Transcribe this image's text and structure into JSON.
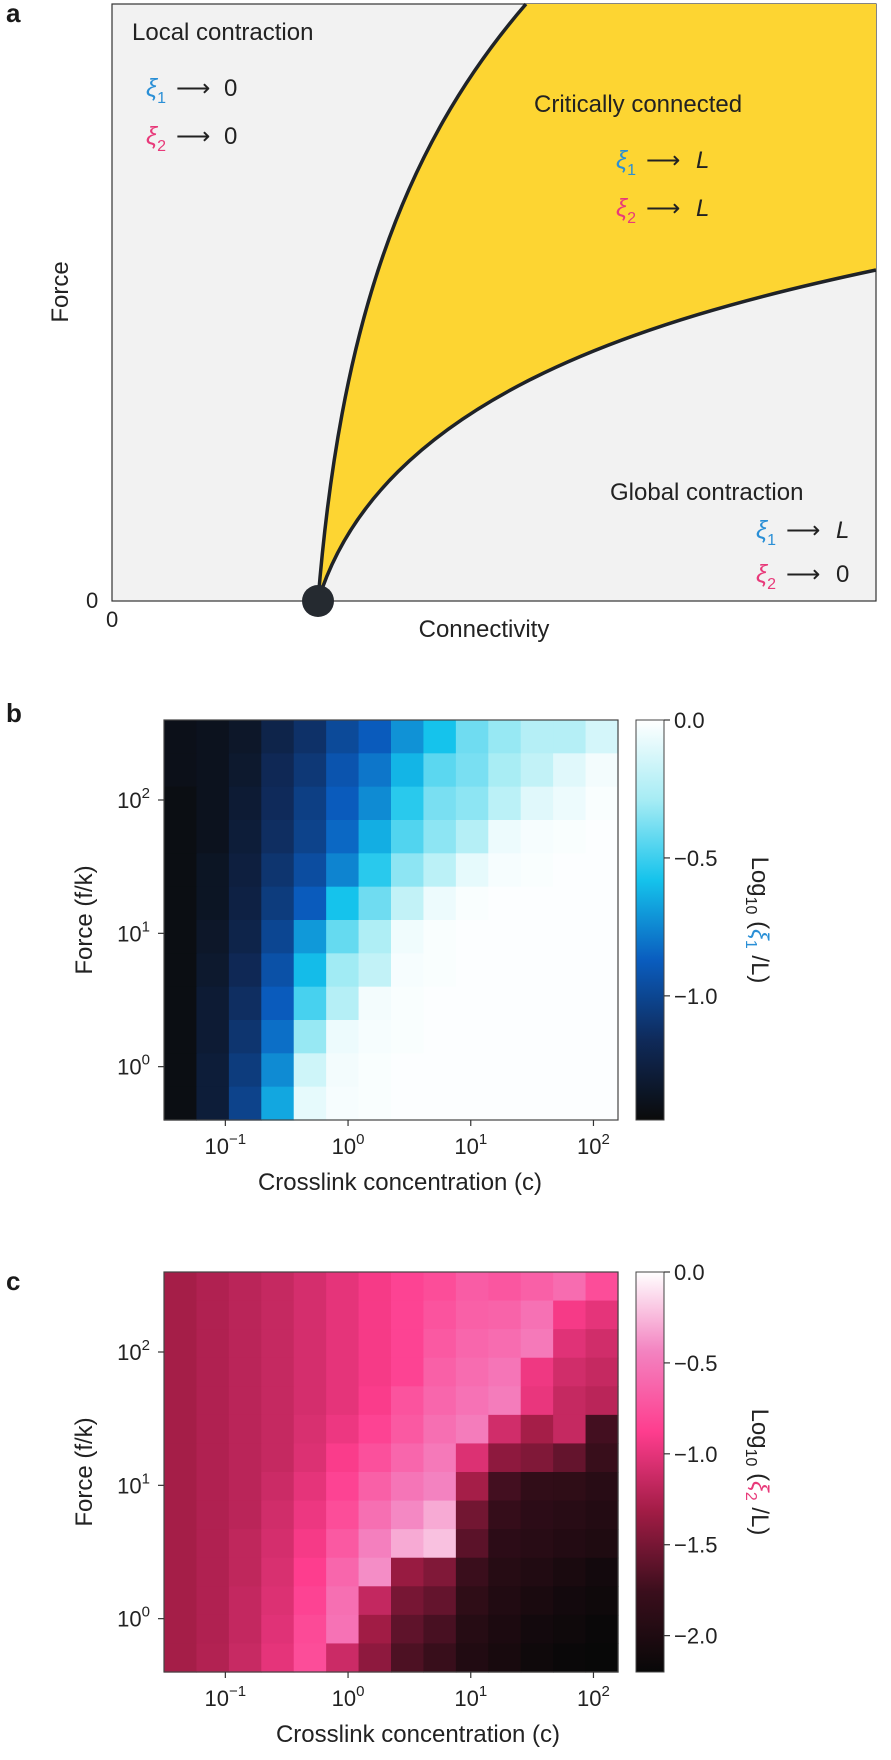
{
  "panels": {
    "a": "a",
    "b": "b",
    "c": "c"
  },
  "chart_data": [
    {
      "type": "diagram",
      "panel": "a",
      "xlabel": "Connectivity",
      "ylabel": "Force",
      "x_origin_label": "0",
      "y_origin_label": "0",
      "regions": [
        {
          "name": "Local contraction",
          "lines": [
            {
              "sym": "ξ",
              "sub": "1",
              "arrow": "⟶",
              "val": "0"
            },
            {
              "sym": "ξ",
              "sub": "2",
              "arrow": "⟶",
              "val": "0"
            }
          ]
        },
        {
          "name": "Critically connected",
          "lines": [
            {
              "sym": "ξ",
              "sub": "1",
              "arrow": "⟶",
              "val": "L"
            },
            {
              "sym": "ξ",
              "sub": "2",
              "arrow": "⟶",
              "val": "L"
            }
          ]
        },
        {
          "name": "Global contraction",
          "lines": [
            {
              "sym": "ξ",
              "sub": "1",
              "arrow": "⟶",
              "val": "L"
            },
            {
              "sym": "ξ",
              "sub": "2",
              "arrow": "⟶",
              "val": "0"
            }
          ]
        }
      ],
      "colors": {
        "background": "#f2f2f2",
        "critical": "#fdd532",
        "boundary": "#1f2328",
        "xi1": "#2a8fd6",
        "xi2": "#e83a7a"
      }
    },
    {
      "type": "heatmap",
      "panel": "b",
      "xlabel": "Crosslink concentration (c)",
      "ylabel": "Force (f/k)",
      "colorbar_label": {
        "pre": "Log",
        "sub": "10",
        "open": " (",
        "sym": "ξ",
        "symsub": "1",
        "post": " /L)"
      },
      "x_log_range": [
        -1.5,
        2.2
      ],
      "y_log_range": [
        -0.4,
        2.6
      ],
      "x_ticks": [
        {
          "base": "10",
          "exp": "−1",
          "value": -1
        },
        {
          "base": "10",
          "exp": "0",
          "value": 0
        },
        {
          "base": "10",
          "exp": "1",
          "value": 1
        },
        {
          "base": "10",
          "exp": "2",
          "value": 2
        }
      ],
      "y_ticks": [
        {
          "base": "10",
          "exp": "0",
          "value": 0
        },
        {
          "base": "10",
          "exp": "1",
          "value": 1
        },
        {
          "base": "10",
          "exp": "2",
          "value": 2
        }
      ],
      "colorbar_range": [
        -1.45,
        0.0
      ],
      "colorbar_ticks": [
        {
          "label": "0.0",
          "value": 0.0
        },
        {
          "label": "−0.5",
          "value": -0.5
        },
        {
          "label": "−1.0",
          "value": -1.0
        }
      ],
      "colormap": [
        "#0b0b0b",
        "#0f2a5a",
        "#0a5dbf",
        "#15c3ec",
        "#a6ecf4",
        "#ffffff"
      ],
      "values": [
        [
          -1.4,
          -1.38,
          -1.34,
          -1.22,
          -1.12,
          -0.98,
          -0.88,
          -0.72,
          -0.58,
          -0.4,
          -0.32,
          -0.24,
          -0.24,
          -0.14
        ],
        [
          -1.4,
          -1.38,
          -1.32,
          -1.18,
          -1.08,
          -0.92,
          -0.8,
          -0.62,
          -0.44,
          -0.38,
          -0.28,
          -0.2,
          -0.1,
          -0.04
        ],
        [
          -1.42,
          -1.38,
          -1.3,
          -1.16,
          -1.04,
          -0.88,
          -0.74,
          -0.54,
          -0.38,
          -0.34,
          -0.22,
          -0.1,
          -0.06,
          -0.02
        ],
        [
          -1.42,
          -1.38,
          -1.28,
          -1.14,
          -1.02,
          -0.84,
          -0.64,
          -0.46,
          -0.34,
          -0.24,
          -0.06,
          -0.03,
          -0.02,
          -0.01
        ],
        [
          -1.42,
          -1.36,
          -1.26,
          -1.1,
          -0.96,
          -0.76,
          -0.54,
          -0.34,
          -0.22,
          -0.08,
          -0.03,
          -0.02,
          -0.01,
          -0.01
        ],
        [
          -1.42,
          -1.36,
          -1.24,
          -1.06,
          -0.88,
          -0.58,
          -0.4,
          -0.2,
          -0.06,
          -0.02,
          -0.01,
          -0.01,
          -0.01,
          -0.01
        ],
        [
          -1.42,
          -1.34,
          -1.22,
          -1.0,
          -0.7,
          -0.42,
          -0.26,
          -0.05,
          -0.02,
          -0.01,
          -0.01,
          -0.01,
          -0.01,
          -0.01
        ],
        [
          -1.42,
          -1.32,
          -1.18,
          -0.94,
          -0.6,
          -0.3,
          -0.2,
          -0.03,
          -0.02,
          -0.01,
          -0.01,
          -0.01,
          -0.01,
          -0.01
        ],
        [
          -1.42,
          -1.3,
          -1.14,
          -0.88,
          -0.48,
          -0.24,
          -0.04,
          -0.02,
          -0.01,
          -0.01,
          -0.01,
          -0.01,
          -0.01,
          -0.01
        ],
        [
          -1.42,
          -1.3,
          -1.1,
          -0.82,
          -0.32,
          -0.06,
          -0.03,
          -0.02,
          -0.01,
          -0.01,
          -0.01,
          -0.01,
          -0.01,
          -0.01
        ],
        [
          -1.42,
          -1.28,
          -1.06,
          -0.74,
          -0.16,
          -0.04,
          -0.02,
          -0.01,
          -0.01,
          -0.01,
          -0.01,
          -0.01,
          -0.01,
          -0.01
        ],
        [
          -1.42,
          -1.28,
          -1.02,
          -0.66,
          -0.08,
          -0.03,
          -0.02,
          -0.01,
          -0.01,
          -0.01,
          -0.01,
          -0.01,
          -0.01,
          -0.01
        ]
      ]
    },
    {
      "type": "heatmap",
      "panel": "c",
      "xlabel": "Crosslink concentration (c)",
      "ylabel": "Force (f/k)",
      "colorbar_label": {
        "pre": "Log",
        "sub": "10",
        "open": " (",
        "sym": "ξ",
        "symsub": "2",
        "post": " /L)"
      },
      "x_log_range": [
        -1.5,
        2.2
      ],
      "y_log_range": [
        -0.4,
        2.6
      ],
      "x_ticks": [
        {
          "base": "10",
          "exp": "−1",
          "value": -1
        },
        {
          "base": "10",
          "exp": "0",
          "value": 0
        },
        {
          "base": "10",
          "exp": "1",
          "value": 1
        },
        {
          "base": "10",
          "exp": "2",
          "value": 2
        }
      ],
      "y_ticks": [
        {
          "base": "10",
          "exp": "0",
          "value": 0
        },
        {
          "base": "10",
          "exp": "1",
          "value": 1
        },
        {
          "base": "10",
          "exp": "2",
          "value": 2
        }
      ],
      "colorbar_range": [
        -2.2,
        0.0
      ],
      "colorbar_ticks": [
        {
          "label": "0.0",
          "value": 0.0
        },
        {
          "label": "−0.5",
          "value": -0.5
        },
        {
          "label": "−1.0",
          "value": -1.0
        },
        {
          "label": "−1.5",
          "value": -1.5
        },
        {
          "label": "−2.0",
          "value": -2.0
        }
      ],
      "colormap": [
        "#080808",
        "#3a0e1c",
        "#a11c45",
        "#fe3d8e",
        "#f382c0",
        "#ffffff"
      ],
      "values": [
        [
          -1.3,
          -1.25,
          -1.2,
          -1.15,
          -1.08,
          -1.0,
          -0.92,
          -0.84,
          -0.78,
          -0.68,
          -0.72,
          -0.66,
          -0.58,
          -0.78
        ],
        [
          -1.3,
          -1.25,
          -1.2,
          -1.15,
          -1.08,
          -1.0,
          -0.92,
          -0.84,
          -0.74,
          -0.66,
          -0.64,
          -0.55,
          -0.92,
          -1.0
        ],
        [
          -1.3,
          -1.25,
          -1.2,
          -1.15,
          -1.08,
          -1.0,
          -0.92,
          -0.84,
          -0.7,
          -0.62,
          -0.58,
          -0.5,
          -1.02,
          -1.1
        ],
        [
          -1.3,
          -1.25,
          -1.2,
          -1.15,
          -1.08,
          -1.0,
          -0.92,
          -0.84,
          -0.66,
          -0.58,
          -0.52,
          -0.95,
          -1.1,
          -1.15
        ],
        [
          -1.3,
          -1.25,
          -1.2,
          -1.15,
          -1.08,
          -1.0,
          -0.9,
          -0.74,
          -0.62,
          -0.54,
          -0.48,
          -0.98,
          -1.15,
          -1.2
        ],
        [
          -1.3,
          -1.25,
          -1.2,
          -1.15,
          -1.06,
          -0.96,
          -0.84,
          -0.7,
          -0.56,
          -0.48,
          -1.1,
          -1.3,
          -1.15,
          -1.72
        ],
        [
          -1.3,
          -1.25,
          -1.2,
          -1.15,
          -1.04,
          -0.9,
          -0.76,
          -0.62,
          -0.5,
          -1.04,
          -1.4,
          -1.46,
          -1.58,
          -1.78
        ],
        [
          -1.3,
          -1.25,
          -1.2,
          -1.12,
          -1.0,
          -0.84,
          -0.66,
          -0.52,
          -0.44,
          -1.3,
          -1.72,
          -1.84,
          -1.86,
          -1.92
        ],
        [
          -1.3,
          -1.25,
          -1.2,
          -1.1,
          -0.96,
          -0.78,
          -0.56,
          -0.42,
          -0.3,
          -1.52,
          -1.8,
          -1.88,
          -1.92,
          -1.96
        ],
        [
          -1.3,
          -1.25,
          -1.18,
          -1.08,
          -0.92,
          -0.7,
          -0.46,
          -0.3,
          -0.22,
          -1.62,
          -1.88,
          -1.92,
          -1.96,
          -2.0
        ],
        [
          -1.3,
          -1.25,
          -1.18,
          -1.06,
          -0.88,
          -0.62,
          -0.4,
          -1.36,
          -1.46,
          -1.76,
          -1.94,
          -1.98,
          -2.04,
          -2.1
        ],
        [
          -1.3,
          -1.25,
          -1.16,
          -1.04,
          -0.84,
          -0.56,
          -1.16,
          -1.5,
          -1.58,
          -1.86,
          -1.98,
          -2.04,
          -2.1,
          -2.14
        ],
        [
          -1.3,
          -1.25,
          -1.16,
          -1.02,
          -0.8,
          -0.54,
          -1.32,
          -1.6,
          -1.7,
          -1.94,
          -2.02,
          -2.1,
          -2.14,
          -2.18
        ],
        [
          -1.3,
          -1.24,
          -1.14,
          -1.0,
          -0.78,
          -1.12,
          -1.4,
          -1.68,
          -1.78,
          -1.98,
          -2.06,
          -2.14,
          -2.18,
          -2.2
        ]
      ]
    }
  ]
}
